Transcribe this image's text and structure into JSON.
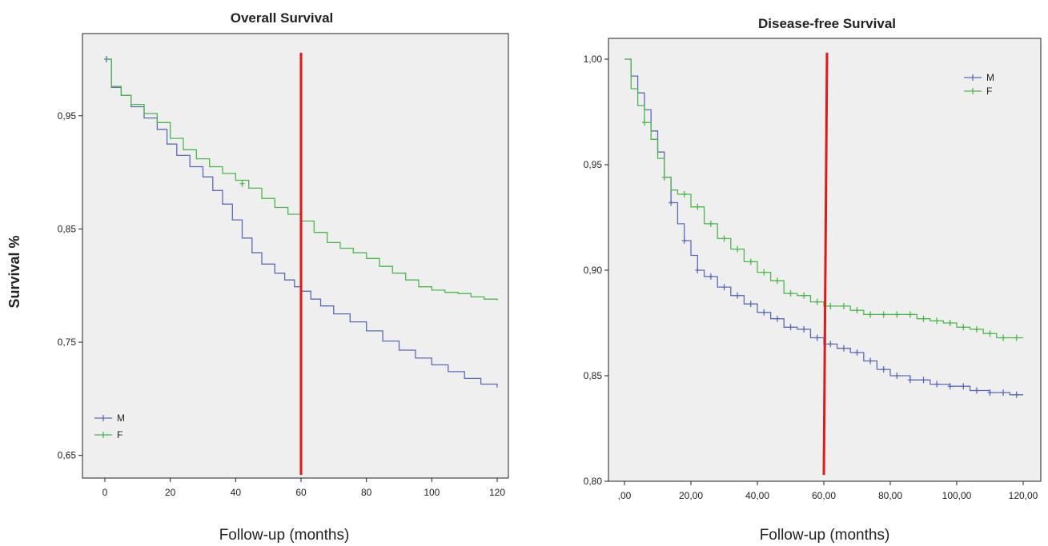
{
  "colors": {
    "M": "#5b6bb7",
    "F": "#4cb84c",
    "refline": "#e01818",
    "plot_bg": "#efefef"
  },
  "shared": {
    "ylabel": "Survival %"
  },
  "chart_data": [
    {
      "type": "line",
      "title": "Overall Survival",
      "xlabel": "Follow-up (months)",
      "xlim": [
        0,
        120
      ],
      "ylim": [
        0.63,
        1.0
      ],
      "xticks": [
        0,
        20,
        40,
        60,
        80,
        100,
        120
      ],
      "xtick_labels": [
        "0",
        "20",
        "40",
        "60",
        "80",
        "100",
        "120"
      ],
      "yticks": [
        0.65,
        0.75,
        0.85,
        0.95
      ],
      "ytick_labels": [
        "0,65",
        "0,75",
        "0,85",
        "0,95"
      ],
      "grid": false,
      "legend": "bottom-left",
      "reference_line_x": 60,
      "series": [
        {
          "name": "M",
          "x": [
            0,
            2,
            5,
            8,
            12,
            16,
            19,
            22,
            26,
            30,
            33,
            36,
            39,
            42,
            45,
            48,
            52,
            55,
            58,
            60,
            63,
            66,
            70,
            75,
            80,
            85,
            90,
            95,
            100,
            105,
            110,
            115,
            120
          ],
          "y": [
            1.0,
            0.975,
            0.968,
            0.958,
            0.948,
            0.938,
            0.925,
            0.915,
            0.905,
            0.896,
            0.884,
            0.872,
            0.858,
            0.842,
            0.829,
            0.819,
            0.811,
            0.805,
            0.799,
            0.795,
            0.788,
            0.782,
            0.775,
            0.768,
            0.76,
            0.751,
            0.743,
            0.736,
            0.73,
            0.724,
            0.718,
            0.713,
            0.71
          ],
          "censored": [
            {
              "x": 0.5,
              "y": 1.0
            }
          ]
        },
        {
          "name": "F",
          "x": [
            0,
            2,
            5,
            8,
            12,
            16,
            20,
            24,
            28,
            32,
            36,
            40,
            44,
            48,
            52,
            56,
            60,
            64,
            68,
            72,
            76,
            80,
            84,
            88,
            92,
            96,
            100,
            104,
            108,
            112,
            116,
            120
          ],
          "y": [
            1.0,
            0.976,
            0.968,
            0.96,
            0.952,
            0.944,
            0.93,
            0.92,
            0.912,
            0.905,
            0.899,
            0.893,
            0.886,
            0.877,
            0.869,
            0.863,
            0.857,
            0.847,
            0.838,
            0.833,
            0.829,
            0.824,
            0.817,
            0.811,
            0.805,
            0.799,
            0.796,
            0.794,
            0.793,
            0.79,
            0.788,
            0.787
          ],
          "censored": [
            {
              "x": 42,
              "y": 0.89
            }
          ]
        }
      ]
    },
    {
      "type": "line",
      "title": "Disease-free Survival",
      "xlabel": "Follow-up (months)",
      "xlim": [
        0,
        120
      ],
      "ylim": [
        0.8,
        1.0
      ],
      "xticks": [
        0,
        20,
        40,
        60,
        80,
        100,
        120
      ],
      "xtick_labels": [
        ",00",
        "20,00",
        "40,00",
        "60,00",
        "80,00",
        "100,00",
        "120,00"
      ],
      "yticks": [
        0.8,
        0.85,
        0.9,
        0.95,
        1.0
      ],
      "ytick_labels": [
        "0,80",
        "0,85",
        "0,90",
        "0,95",
        "1,00"
      ],
      "grid": false,
      "legend": "top-right",
      "reference_line_x": 60,
      "series": [
        {
          "name": "M",
          "x": [
            0,
            2,
            4,
            6,
            8,
            10,
            12,
            14,
            16,
            18,
            20,
            22,
            24,
            28,
            32,
            36,
            40,
            44,
            48,
            52,
            56,
            60,
            64,
            68,
            72,
            76,
            80,
            86,
            92,
            98,
            104,
            110,
            116,
            120
          ],
          "y": [
            1.0,
            0.992,
            0.984,
            0.976,
            0.966,
            0.956,
            0.944,
            0.932,
            0.922,
            0.914,
            0.907,
            0.9,
            0.897,
            0.892,
            0.888,
            0.884,
            0.88,
            0.877,
            0.873,
            0.872,
            0.868,
            0.865,
            0.863,
            0.861,
            0.857,
            0.853,
            0.85,
            0.848,
            0.846,
            0.845,
            0.843,
            0.842,
            0.841,
            0.841
          ],
          "censored_x": [
            14,
            18,
            22,
            26,
            30,
            34,
            38,
            42,
            46,
            50,
            54,
            58,
            62,
            66,
            70,
            74,
            78,
            82,
            86,
            90,
            94,
            98,
            102,
            106,
            110,
            114,
            118
          ]
        },
        {
          "name": "F",
          "x": [
            0,
            2,
            4,
            6,
            8,
            10,
            12,
            14,
            16,
            20,
            24,
            28,
            32,
            36,
            40,
            44,
            48,
            52,
            56,
            60,
            64,
            68,
            72,
            76,
            80,
            84,
            88,
            92,
            96,
            100,
            104,
            108,
            112,
            116,
            120
          ],
          "y": [
            1.0,
            0.986,
            0.978,
            0.97,
            0.962,
            0.953,
            0.944,
            0.938,
            0.936,
            0.93,
            0.922,
            0.915,
            0.91,
            0.904,
            0.899,
            0.895,
            0.889,
            0.888,
            0.885,
            0.883,
            0.883,
            0.881,
            0.879,
            0.879,
            0.879,
            0.879,
            0.877,
            0.876,
            0.875,
            0.873,
            0.872,
            0.87,
            0.868,
            0.868,
            0.868
          ],
          "censored_x": [
            6,
            12,
            18,
            22,
            26,
            30,
            34,
            38,
            42,
            46,
            50,
            54,
            58,
            62,
            66,
            70,
            74,
            78,
            82,
            86,
            90,
            94,
            98,
            102,
            106,
            110,
            114,
            118
          ]
        }
      ]
    }
  ]
}
